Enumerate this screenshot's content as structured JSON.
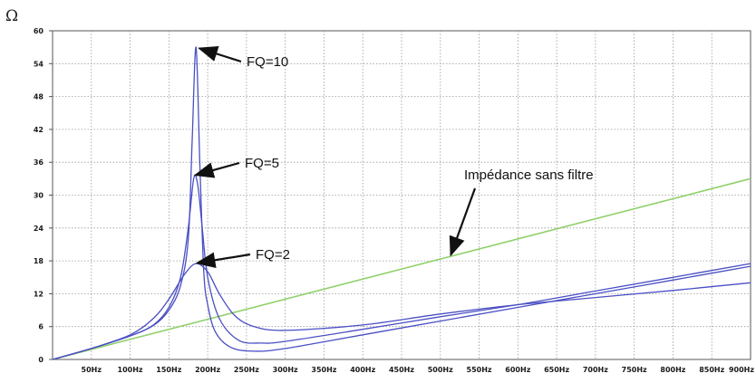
{
  "chart_data": {
    "type": "line",
    "y_unit": "Ω",
    "ylim": [
      0,
      60
    ],
    "xlim": [
      0,
      900
    ],
    "y_ticks": [
      0,
      6,
      12,
      18,
      24,
      30,
      36,
      42,
      48,
      54,
      60
    ],
    "x_ticks": [
      50,
      100,
      150,
      200,
      250,
      300,
      350,
      400,
      450,
      500,
      550,
      600,
      650,
      700,
      750,
      800,
      850,
      900
    ],
    "x_tick_labels": [
      "50Hz",
      "100Hz",
      "150Hz",
      "200Hz",
      "250Hz",
      "300Hz",
      "350Hz",
      "400Hz",
      "450Hz",
      "500Hz",
      "550Hz",
      "600Hz",
      "650Hz",
      "700Hz",
      "750Hz",
      "800Hz",
      "850Hz",
      "900Hz"
    ],
    "grid": true,
    "series": [
      {
        "color": "#8fd06a",
        "x": [
          0,
          900
        ],
        "y": [
          0,
          33
        ]
      },
      {
        "color": "#4a4fc4",
        "x": [
          0,
          50,
          100,
          130,
          150,
          165,
          175,
          180,
          185,
          190,
          195,
          200,
          210,
          230,
          260,
          300,
          400,
          500,
          600,
          700,
          800,
          900
        ],
        "y": [
          0,
          2.0,
          4.3,
          6.2,
          9.0,
          13.5,
          22.0,
          40.0,
          57.0,
          35.0,
          16.0,
          10.0,
          5.0,
          2.2,
          1.5,
          2.0,
          4.5,
          7.0,
          9.5,
          12.0,
          14.5,
          17.0
        ]
      },
      {
        "color": "#4a4fc4",
        "x": [
          0,
          50,
          100,
          130,
          150,
          165,
          175,
          182,
          187,
          193,
          200,
          215,
          240,
          270,
          300,
          400,
          500,
          600,
          700,
          800,
          900
        ],
        "y": [
          0,
          2.0,
          4.3,
          6.3,
          9.5,
          15.0,
          24.0,
          33.0,
          32.0,
          24.0,
          15.0,
          7.5,
          3.5,
          3.0,
          3.3,
          5.5,
          7.8,
          10.0,
          12.5,
          15.0,
          17.5
        ]
      },
      {
        "color": "#4a4fc4",
        "x": [
          0,
          50,
          100,
          130,
          150,
          170,
          185,
          200,
          215,
          235,
          260,
          300,
          400,
          500,
          600,
          700,
          800,
          900
        ],
        "y": [
          0,
          2.0,
          4.5,
          7.5,
          11.0,
          15.5,
          17.5,
          16.0,
          12.0,
          8.0,
          6.0,
          5.3,
          6.3,
          8.3,
          10.0,
          11.3,
          12.6,
          14.0
        ]
      }
    ],
    "annotations": [
      {
        "text": "FQ=10",
        "target": [
          185,
          57
        ]
      },
      {
        "text": "FQ=5",
        "target": [
          180,
          33.5
        ]
      },
      {
        "text": "FQ=2",
        "target": [
          182,
          17.5
        ]
      },
      {
        "text": "Impédance sans filtre",
        "target": [
          512,
          18.5
        ]
      }
    ]
  }
}
